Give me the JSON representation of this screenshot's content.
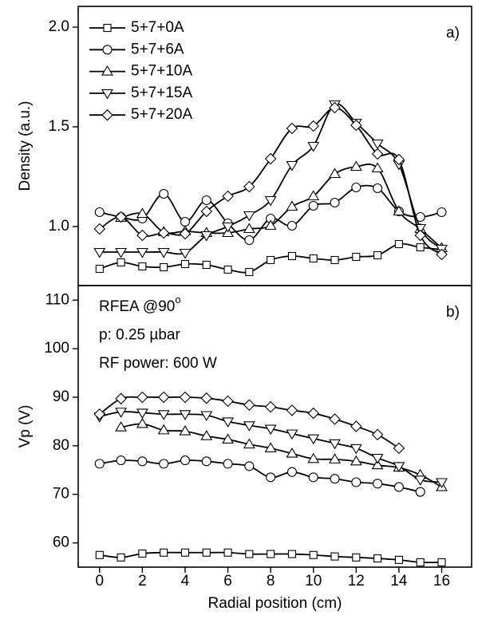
{
  "chart_data": [
    {
      "type": "line",
      "ylabel": "Density (a.u.)",
      "panel_label": "a)",
      "legend": "upper left",
      "x": [
        0,
        1,
        2,
        3,
        4,
        5,
        6,
        7,
        8,
        9,
        10,
        11,
        12,
        13,
        14,
        15,
        16
      ],
      "xlim": [
        -1,
        17.4
      ],
      "ylim": [
        0.704,
        2.104
      ],
      "yticks": [
        {
          "value": 1,
          "label": "1.0"
        },
        1.5,
        {
          "value": 2,
          "label": "2.0"
        }
      ],
      "series": [
        {
          "name": "5+7+0A",
          "marker": "square",
          "color": "#000000",
          "values": [
            0.788,
            0.82,
            0.8,
            0.796,
            0.812,
            0.808,
            0.784,
            0.772,
            0.832,
            0.852,
            0.84,
            0.832,
            0.848,
            0.856,
            0.912,
            0.896,
            0.884
          ]
        },
        {
          "name": "5+7+6A",
          "marker": "circle",
          "color": "#000000",
          "values": [
            1.072,
            1.048,
            1.04,
            1.164,
            1.024,
            1.132,
            1.016,
            0.932,
            1.04,
            1.004,
            1.104,
            1.12,
            1.196,
            1.192,
            1.076,
            1.048,
            1.072
          ]
        },
        {
          "name": "5+7+10A",
          "marker": "triangle-up",
          "color": "#000000",
          "values": [
            null,
            1.044,
            1.064,
            0.972,
            0.976,
            0.968,
            0.968,
            0.988,
            1.004,
            1.1,
            1.152,
            1.264,
            1.3,
            1.292,
            1.076,
            0.988,
            0.892
          ]
        },
        {
          "name": "5+7+15A",
          "marker": "triangle-down",
          "color": "#000000",
          "values": [
            0.872,
            0.872,
            0.872,
            0.872,
            0.868,
            0.956,
            1.0,
            1.056,
            1.132,
            1.308,
            1.404,
            1.612,
            1.52,
            1.416,
            1.312,
            0.992,
            0.888
          ]
        },
        {
          "name": "5+7+20A",
          "marker": "diamond",
          "color": "#000000",
          "values": [
            0.988,
            1.048,
            0.956,
            0.968,
            0.964,
            1.076,
            1.152,
            1.2,
            1.34,
            1.492,
            1.504,
            1.596,
            1.508,
            1.364,
            1.336,
            0.956,
            0.86
          ]
        }
      ]
    },
    {
      "type": "line",
      "ylabel": "Vp (V)",
      "xlabel": "Radial position (cm)",
      "panel_label": "b)",
      "annotations": [
        {
          "text": "RFEA @90",
          "superscript": "o"
        },
        {
          "text": "p: 0.25 µbar"
        },
        {
          "text": "RF power: 600 W"
        }
      ],
      "x": [
        0,
        1,
        2,
        3,
        4,
        5,
        6,
        7,
        8,
        9,
        10,
        11,
        12,
        13,
        14,
        15,
        16
      ],
      "xlim": [
        -1,
        17.4
      ],
      "xticks": [
        0,
        2,
        4,
        6,
        8,
        10,
        12,
        14,
        16
      ],
      "ylim": [
        55,
        113
      ],
      "yticks": [
        60,
        70,
        80,
        90,
        100,
        110
      ],
      "series": [
        {
          "name": "5+7+0A",
          "marker": "square",
          "color": "#000000",
          "values": [
            57.5,
            57,
            57.8,
            58,
            58,
            58,
            58,
            57.7,
            57.7,
            57.7,
            57.5,
            57.2,
            57,
            56.8,
            56.5,
            56,
            56
          ]
        },
        {
          "name": "5+7+6A",
          "marker": "circle",
          "color": "#000000",
          "values": [
            76.3,
            77,
            76.8,
            76.3,
            77,
            76.8,
            76.3,
            75.8,
            73.5,
            74.6,
            73.5,
            73.2,
            72.5,
            72.2,
            71.5,
            70.5,
            null
          ]
        },
        {
          "name": "5+7+10A",
          "marker": "triangle-up",
          "color": "#000000",
          "values": [
            null,
            83.8,
            84.5,
            83.2,
            83,
            82,
            81.3,
            80.3,
            79.5,
            78.4,
            77.3,
            77.2,
            76.8,
            76,
            75.5,
            74,
            71.5
          ]
        },
        {
          "name": "5+7+15A",
          "marker": "triangle-down",
          "color": "#000000",
          "values": [
            86,
            87,
            86.8,
            86.5,
            86.5,
            86.3,
            85,
            84.2,
            83.5,
            82.5,
            81.5,
            80.5,
            79.5,
            77.5,
            75.8,
            73,
            72.5
          ]
        },
        {
          "name": "5+7+20A",
          "marker": "diamond",
          "color": "#000000",
          "values": [
            86.5,
            89.7,
            90,
            90,
            90,
            89.8,
            89.2,
            88.4,
            88,
            87.3,
            86.7,
            85.5,
            84,
            82.3,
            79.5,
            null,
            null
          ]
        }
      ]
    }
  ]
}
